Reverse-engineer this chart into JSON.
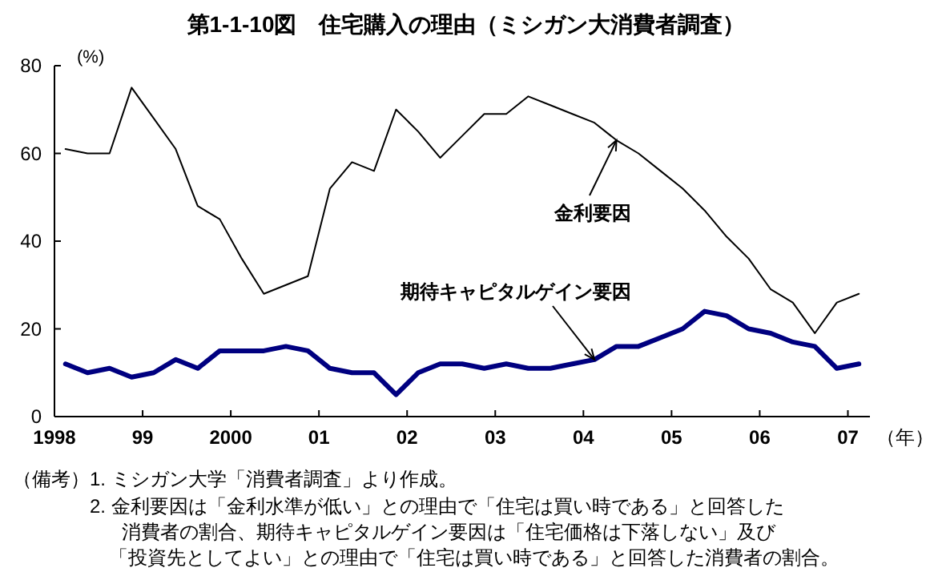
{
  "chart_data": {
    "type": "line",
    "title": "第1-1-10図　住宅購入の理由（ミシガン大消費者調査）",
    "ylabel": "(%)",
    "xlabel": "（年）",
    "x": [
      1998.125,
      1998.375,
      1998.625,
      1998.875,
      1999.125,
      1999.375,
      1999.625,
      1999.875,
      2000.125,
      2000.375,
      2000.625,
      2000.875,
      2001.125,
      2001.375,
      2001.625,
      2001.875,
      2002.125,
      2002.375,
      2002.625,
      2002.875,
      2003.125,
      2003.375,
      2003.625,
      2003.875,
      2004.125,
      2004.375,
      2004.625,
      2004.875,
      2005.125,
      2005.375,
      2005.625,
      2005.875,
      2006.125,
      2006.375,
      2006.625,
      2006.875,
      2007.125
    ],
    "series": [
      {
        "name": "金利要因",
        "color": "#000000",
        "values": [
          61,
          60,
          60,
          75,
          68,
          61,
          48,
          45,
          36,
          28,
          30,
          32,
          52,
          58,
          56,
          70,
          65,
          59,
          64,
          69,
          69,
          73,
          71,
          69,
          67,
          63,
          60,
          56,
          52,
          47,
          41,
          36,
          29,
          26,
          19,
          26,
          28
        ]
      },
      {
        "name": "期待キャピタルゲイン要因",
        "color": "#000080",
        "values": [
          12,
          10,
          11,
          9,
          10,
          13,
          11,
          15,
          15,
          15,
          16,
          15,
          11,
          10,
          10,
          5,
          10,
          12,
          12,
          11,
          12,
          11,
          11,
          12,
          13,
          16,
          16,
          18,
          20,
          24,
          23,
          20,
          19,
          17,
          16,
          11,
          12
        ]
      }
    ],
    "xlim": [
      1998,
      2007.25
    ],
    "ylim": [
      0,
      80
    ],
    "yticks": [
      0,
      20,
      40,
      60,
      80
    ],
    "xticks": [
      1998,
      {
        "value": 1999,
        "label": "99"
      },
      2000,
      {
        "value": 2001,
        "label": "01"
      },
      {
        "value": 2002,
        "label": "02"
      },
      {
        "value": 2003,
        "label": "03"
      },
      {
        "value": 2004,
        "label": "04"
      },
      {
        "value": 2005,
        "label": "05"
      },
      {
        "value": 2006,
        "label": "06"
      },
      {
        "value": 2007,
        "label": "07"
      }
    ],
    "grid": false,
    "legend": false,
    "marker": "none",
    "line_style": "solid",
    "annotations": [
      "（備考）",
      "1.  ミシガン大学「消費者調査」より作成。",
      "2.  金利要因は「金利水準が低い」との理由で「住宅は買い時である」と回答した",
      "消費者の割合、期待キャピタルゲイン要因は「住宅価格は下落しない」及び",
      "「投資先としてよい」との理由で「住宅は買い時である」と回答した消費者の割合。"
    ]
  }
}
